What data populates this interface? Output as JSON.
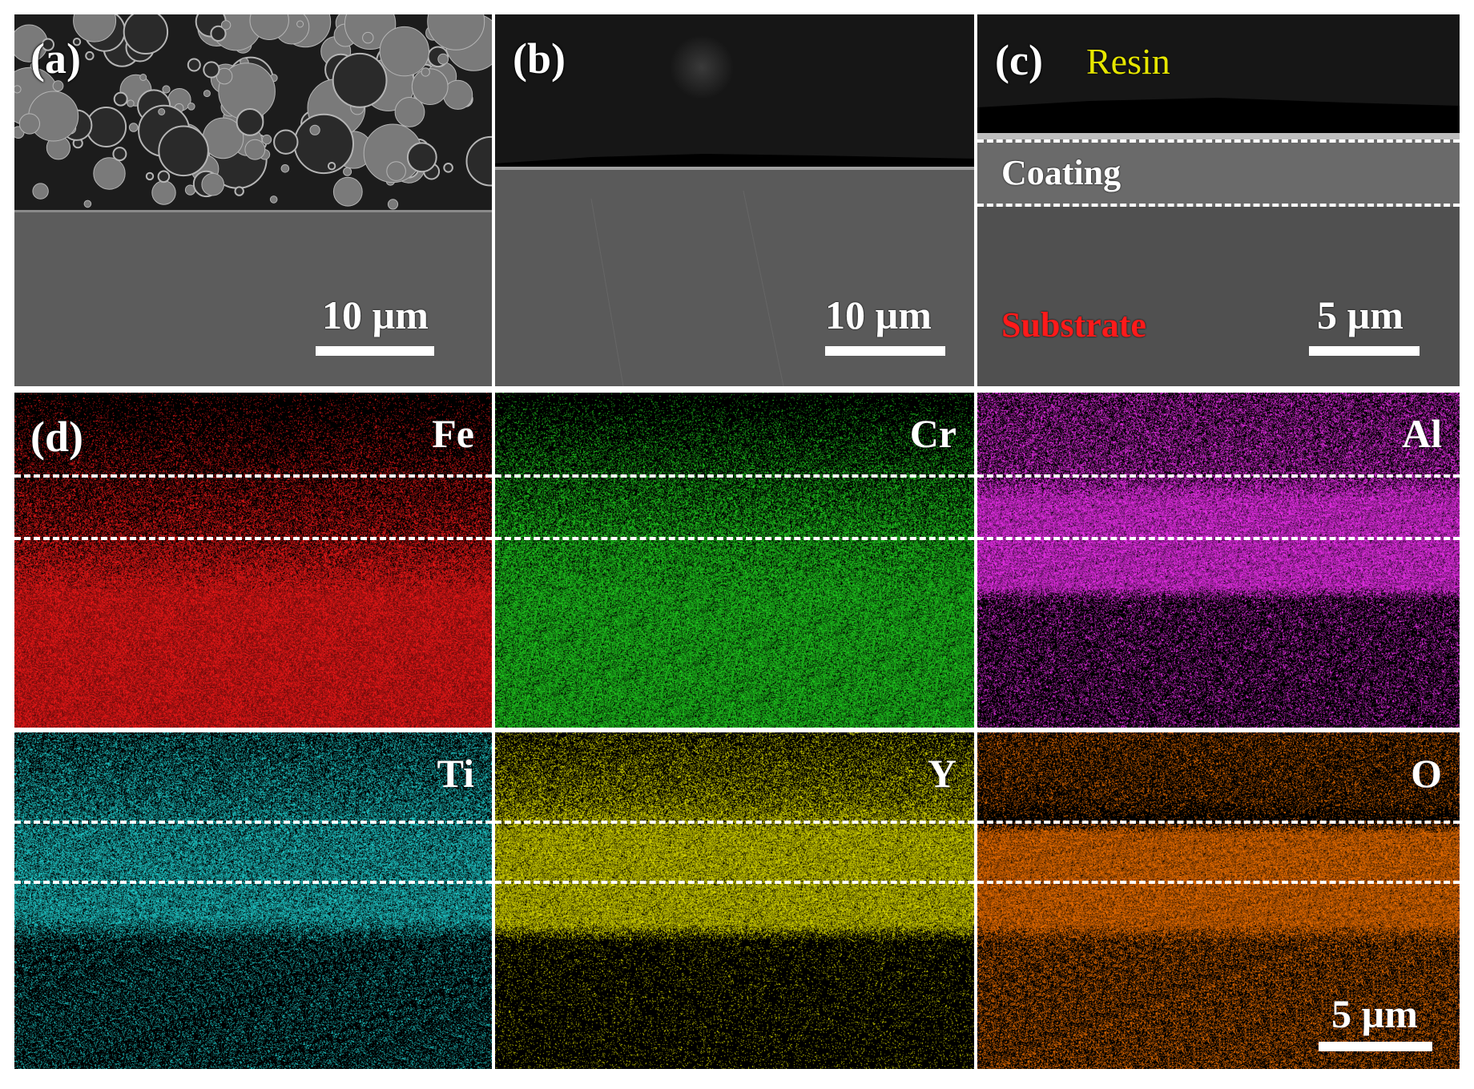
{
  "panels": {
    "a": {
      "label": "(a)",
      "scale_text": "10 µm"
    },
    "b": {
      "label": "(b)",
      "scale_text": "10 µm"
    },
    "c": {
      "label": "(c)",
      "scale_text": "5 µm",
      "resin_label": "Resin",
      "coating_label": "Coating",
      "substrate_label": "Substrate",
      "resin_color": "#e6e600",
      "substrate_color": "#ff1a1a"
    },
    "d": {
      "label": "(d)",
      "scale_text": "5 µm"
    }
  },
  "maps": [
    {
      "element": "Fe",
      "color": "#ff1a1a",
      "base": "#5a0000"
    },
    {
      "element": "Cr",
      "color": "#22dd22",
      "base": "#0a3a0a"
    },
    {
      "element": "Al",
      "color": "#ff33ff",
      "base": "#1a001a"
    },
    {
      "element": "Ti",
      "color": "#22dddd",
      "base": "#001a1a"
    },
    {
      "element": "Y",
      "color": "#e6e600",
      "base": "#121200"
    },
    {
      "element": "O",
      "color": "#ff7700",
      "base": "#2a1000"
    }
  ]
}
